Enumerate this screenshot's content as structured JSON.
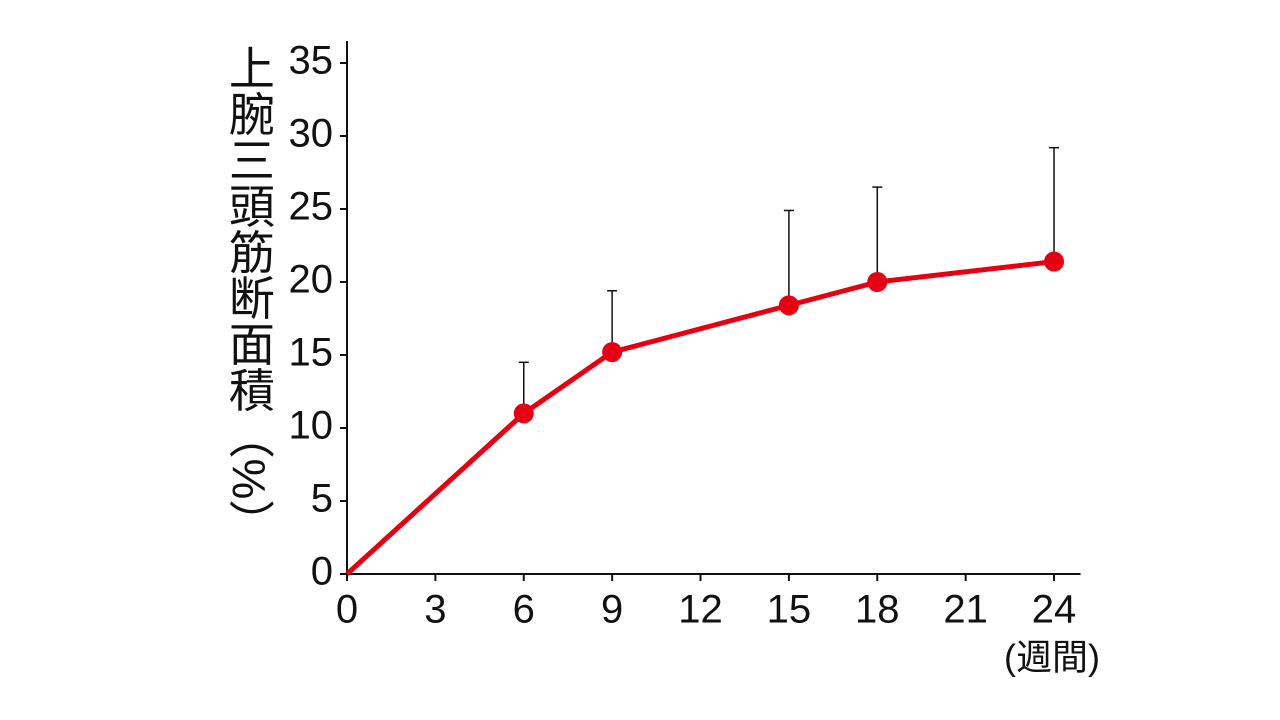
{
  "chart_data": {
    "type": "line",
    "y_label": "上腕三頭筋断面積（%）",
    "x_label": "(週間)",
    "x": [
      0,
      6,
      9,
      15,
      18,
      24
    ],
    "series": [
      {
        "color": "#e60012",
        "values": [
          0,
          11,
          15.2,
          18.4,
          20,
          21.4
        ],
        "errors": [
          null,
          3.5,
          4.2,
          6.5,
          6.5,
          7.8
        ]
      }
    ],
    "xlim": [
      0,
      24.9
    ],
    "xticks": [
      0,
      3,
      6,
      9,
      12,
      15,
      18,
      21,
      24
    ],
    "ylim": [
      0,
      36.5
    ],
    "yticks": [
      0,
      5,
      10,
      15,
      20,
      25,
      30,
      35
    ]
  }
}
